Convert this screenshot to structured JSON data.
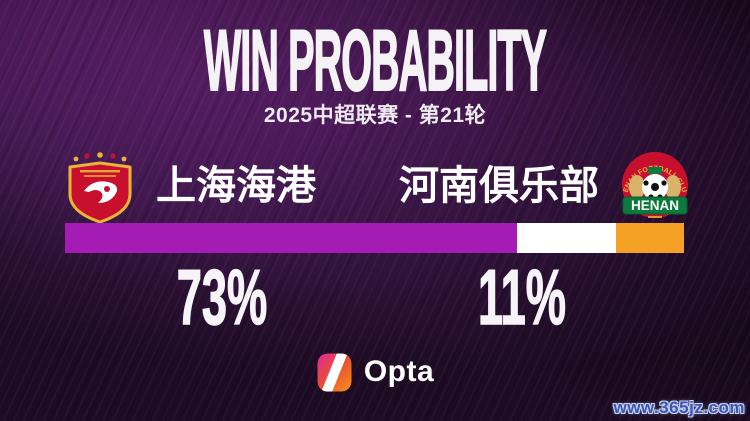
{
  "header": {
    "title": "WIN PROBABILITY",
    "subtitle": "2025中超联赛 - 第21轮"
  },
  "teams": [
    {
      "name": "上海海港",
      "win_probability": "73%",
      "badge": "shanghai-port-crest"
    },
    {
      "name": "河南俱乐部",
      "win_probability": "11%",
      "badge": "henan-crest",
      "badge_text": "HENAN",
      "badge_arc_text": "HENAN FOOTBALL CLUB"
    }
  ],
  "chart_data": {
    "type": "bar",
    "title": "WIN PROBABILITY",
    "subtitle": "2025中超联赛 - 第21轮",
    "categories": [
      "上海海港 win",
      "Draw",
      "河南俱乐部 win"
    ],
    "values": [
      73,
      16,
      11
    ],
    "segments": [
      {
        "label": "上海海港 win",
        "value": 73,
        "color": "#a51cb5"
      },
      {
        "label": "Draw (unlabelled middle segment)",
        "value": 16,
        "color": "#ffffff"
      },
      {
        "label": "河南俱乐部 win",
        "value": 11,
        "color": "#f4a126"
      }
    ],
    "shown_labels": [
      "73%",
      "11%"
    ],
    "legend": "none",
    "axes": "none"
  },
  "branding": {
    "logo_text": "Opta"
  },
  "watermark": "www.365jz.com",
  "colors": {
    "bar_home": "#a51cb5",
    "bar_draw": "#ffffff",
    "bar_away": "#f4a126",
    "background_accent": "#8d31a0"
  }
}
